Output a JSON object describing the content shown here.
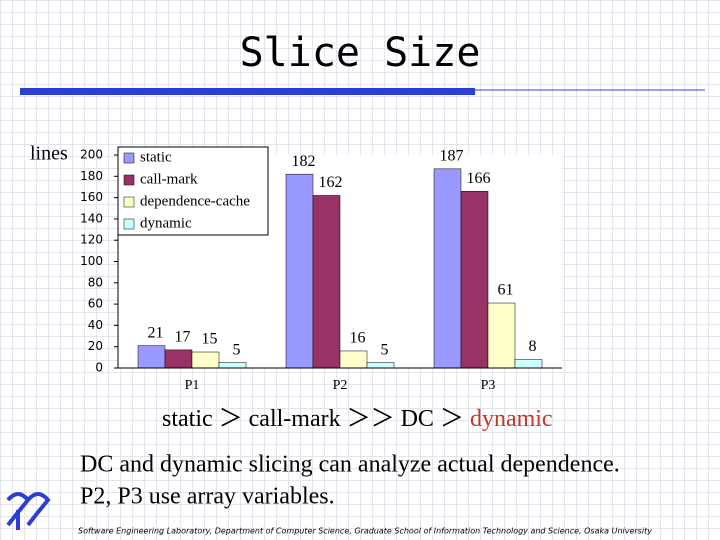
{
  "slide": {
    "title": "Slice Size",
    "comparison": [
      "static ＞ call-mark ＞＞ DC ＞",
      "dynamic"
    ],
    "body": [
      "DC and dynamic slicing can analyze actual dependence.",
      "P2, P3 use array variables."
    ],
    "footer": "Software Engineering Laboratory, Department of Computer Science, Graduate School of Information Technology and Science, Osaka University"
  },
  "chart_data": {
    "type": "bar",
    "y_label": "lines",
    "categories": [
      "P1",
      "P2",
      "P3"
    ],
    "series": [
      {
        "name": "static",
        "color": "#9999ff",
        "values": [
          21,
          182,
          187
        ]
      },
      {
        "name": "call-mark",
        "color": "#993366",
        "values": [
          17,
          162,
          166
        ]
      },
      {
        "name": "dependence-cache",
        "color": "#ffffcc",
        "values": [
          15,
          16,
          61
        ]
      },
      {
        "name": "dynamic",
        "color": "#ccffff",
        "values": [
          5,
          5,
          8
        ]
      }
    ],
    "ylim": [
      0,
      200
    ],
    "yticks": [
      0,
      20,
      40,
      60,
      80,
      100,
      120,
      140,
      160,
      180,
      200
    ],
    "legend": "upper left",
    "grid": false
  }
}
